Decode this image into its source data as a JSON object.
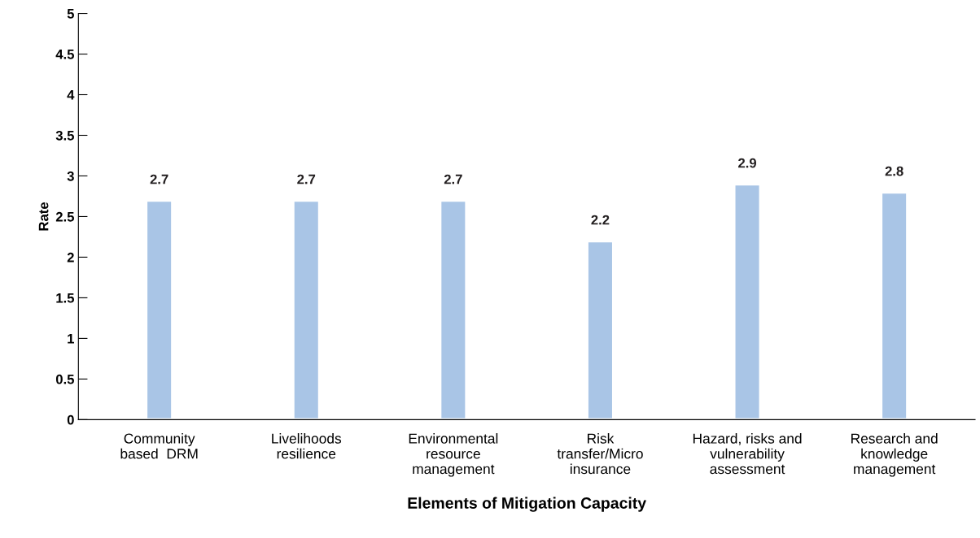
{
  "chart_data": {
    "type": "bar",
    "xlabel": "Elements of Mitigation Capacity",
    "ylabel": "Rate",
    "categories": [
      "Community\nbased  DRM",
      "Livelihoods\nresilience",
      "Environmental\nresource\nmanagement",
      "Risk\ntransfer/Micro\ninsurance",
      "Hazard, risks and\nvulnerability\nassessment",
      "Research and\nknowledge\nmanagement"
    ],
    "values": [
      2.7,
      2.7,
      2.7,
      2.2,
      2.9,
      2.8
    ],
    "color": "#a9c5e6",
    "ylim": [
      0,
      5
    ],
    "yticks": [
      0,
      {
        "value": 0.5,
        "label": "0.5"
      },
      1,
      {
        "value": 1.5,
        "label": "1.5"
      },
      2,
      {
        "value": 2.5,
        "label": "2.5"
      },
      3,
      {
        "value": 3.5,
        "label": "3.5"
      },
      4,
      {
        "value": 4.5,
        "label": "4.5"
      },
      5
    ],
    "data_labels": true,
    "grid": false,
    "legend": false
  }
}
